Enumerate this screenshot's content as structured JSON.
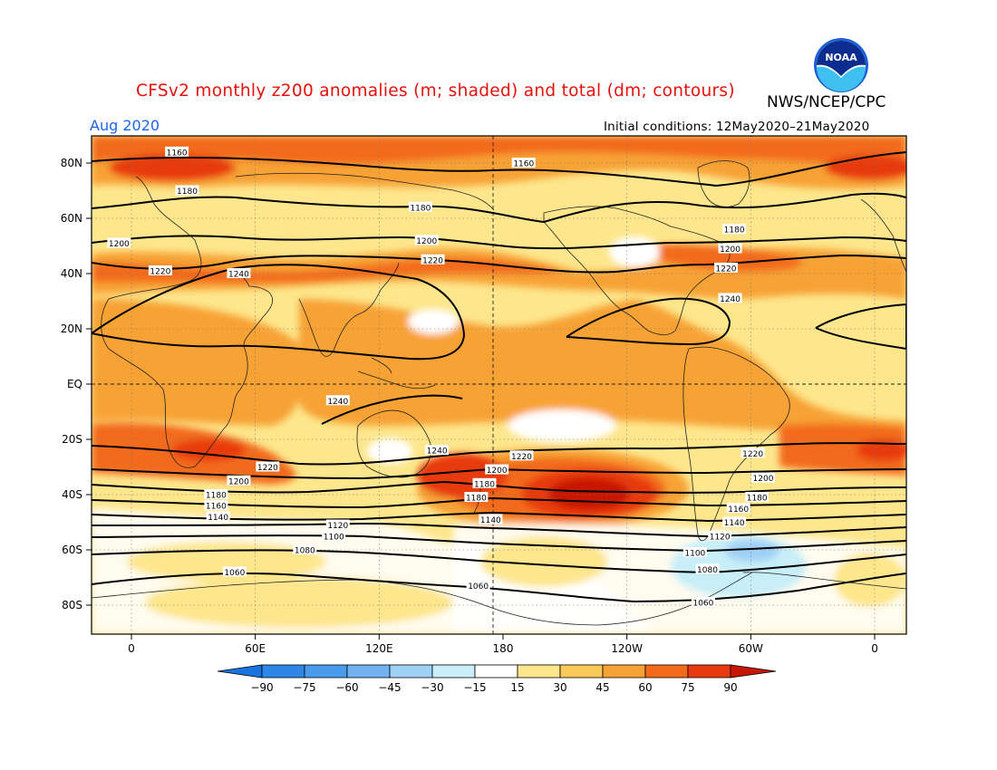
{
  "header": {
    "title": "CFSv2 monthly z200 anomalies (m; shaded) and total (dm; contours)",
    "credit": "NWS/NCEP/CPC",
    "month": "Aug 2020",
    "initial_conditions": "Initial conditions: 12May2020–21May2020",
    "logo_text": "NOAA"
  },
  "map": {
    "lat_ticks": [
      {
        "value": 80,
        "label": "80N"
      },
      {
        "value": 60,
        "label": "60N"
      },
      {
        "value": 40,
        "label": "40N"
      },
      {
        "value": 20,
        "label": "20N"
      },
      {
        "value": 0,
        "label": "EQ"
      },
      {
        "value": -20,
        "label": "20S"
      },
      {
        "value": -40,
        "label": "40S"
      },
      {
        "value": -60,
        "label": "60S"
      },
      {
        "value": -80,
        "label": "80S"
      }
    ],
    "lon_ticks": [
      {
        "value": 0,
        "label": "0"
      },
      {
        "value": 60,
        "label": "60E"
      },
      {
        "value": 120,
        "label": "120E"
      },
      {
        "value": 180,
        "label": "180"
      },
      {
        "value": 240,
        "label": "120W"
      },
      {
        "value": 300,
        "label": "60W"
      },
      {
        "value": 360,
        "label": "0"
      }
    ],
    "contour_lines": [
      {
        "value": 1160,
        "labels": [
          [
            22,
            84
          ],
          [
            190,
            80
          ]
        ]
      },
      {
        "value": 1180,
        "labels": [
          [
            27,
            70
          ],
          [
            140,
            64
          ],
          [
            292,
            56
          ]
        ]
      },
      {
        "value": 1200,
        "labels": [
          [
            -6,
            51
          ],
          [
            143,
            52
          ],
          [
            290,
            49
          ]
        ]
      },
      {
        "value": 1220,
        "labels": [
          [
            14,
            41
          ],
          [
            146,
            45
          ],
          [
            288,
            42
          ]
        ]
      },
      {
        "value": 1240,
        "labels": [
          [
            52,
            40
          ],
          [
            290,
            31
          ],
          [
            100,
            -6
          ],
          [
            148,
            -24
          ]
        ]
      },
      {
        "value": 1220,
        "labels": [
          [
            66,
            -30
          ],
          [
            189,
            -26
          ],
          [
            301,
            -25
          ]
        ]
      },
      {
        "value": 1200,
        "labels": [
          [
            52,
            -35
          ],
          [
            177,
            -31
          ],
          [
            306,
            -34
          ]
        ]
      },
      {
        "value": 1180,
        "labels": [
          [
            41,
            -40
          ],
          [
            171,
            -36
          ],
          [
            167,
            -41
          ],
          [
            303,
            -41
          ]
        ]
      },
      {
        "value": 1160,
        "labels": [
          [
            41,
            -44
          ],
          [
            294,
            -45
          ]
        ]
      },
      {
        "value": 1140,
        "labels": [
          [
            42,
            -48
          ],
          [
            174,
            -49
          ],
          [
            292,
            -50
          ]
        ]
      },
      {
        "value": 1120,
        "labels": [
          [
            100,
            -51
          ],
          [
            285,
            -55
          ]
        ]
      },
      {
        "value": 1100,
        "labels": [
          [
            98,
            -55
          ],
          [
            273,
            -61
          ]
        ]
      },
      {
        "value": 1080,
        "labels": [
          [
            84,
            -60
          ],
          [
            279,
            -67
          ]
        ]
      },
      {
        "value": 1060,
        "labels": [
          [
            50,
            -68
          ],
          [
            168,
            -73
          ],
          [
            277,
            -79
          ]
        ]
      }
    ]
  },
  "colorbar": {
    "labels": [
      "−90",
      "−75",
      "−60",
      "−45",
      "−30",
      "−15",
      "15",
      "30",
      "45",
      "60",
      "75",
      "90"
    ],
    "colors": [
      "#1874e0",
      "#2e86e6",
      "#4b9bec",
      "#72b2f0",
      "#9fd0f5",
      "#c8eef8",
      "#ffffff",
      "#fde68c",
      "#fbc95a",
      "#f7a235",
      "#f26a1a",
      "#e83a10",
      "#c81606"
    ]
  }
}
